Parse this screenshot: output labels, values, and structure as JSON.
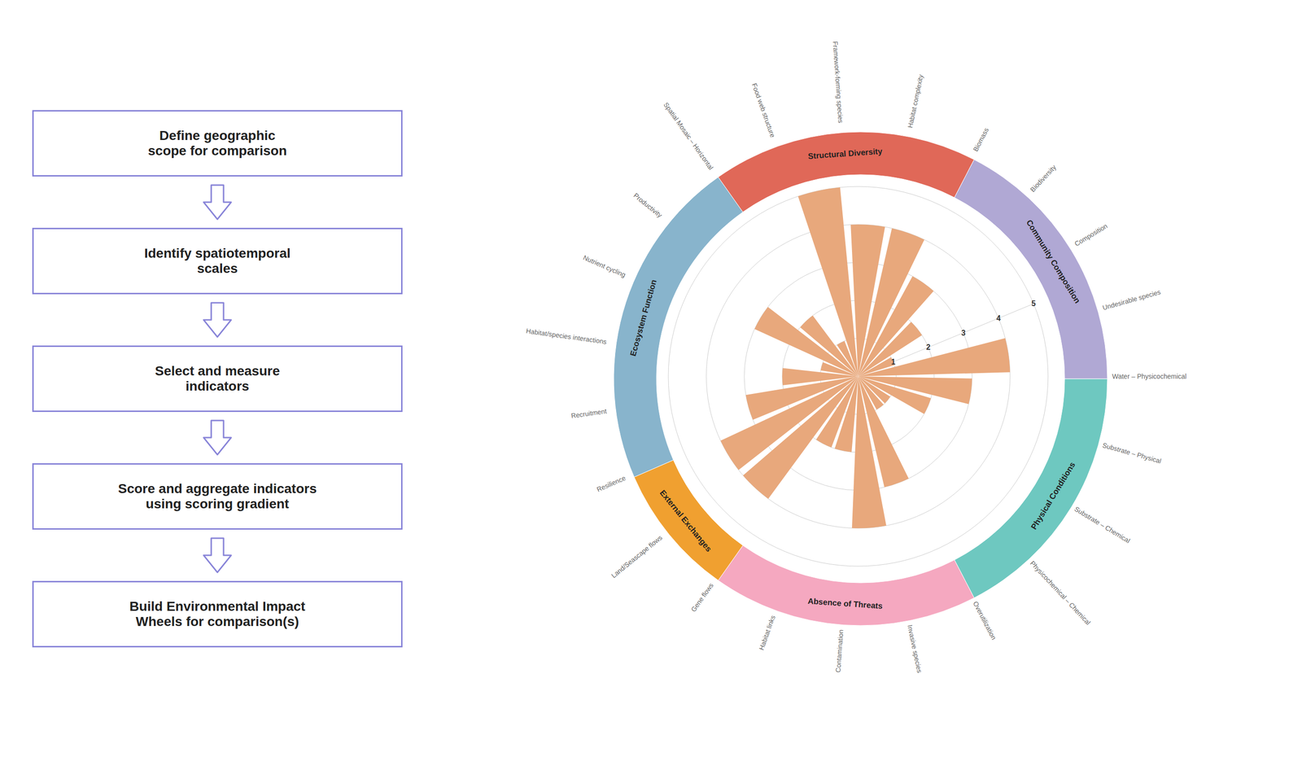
{
  "chart_data": {
    "type": "polar_bar",
    "categories": [
      "Water – Physicochemical",
      "Substrate – Physical",
      "Substrate – Chemical",
      "Physicochemical – Chemical",
      "Overutilization",
      "Invasive species",
      "Contamination",
      "Habitat links",
      "Gene flows",
      "Land/Seascape flows",
      "Resilience",
      "Recruitment",
      "Habitat/species interactions",
      "Nutrient cycling",
      "Productivity",
      "Spatial Mosaic – Horizontal",
      "Food web structure",
      "Framework-forming species",
      "Habitat complexity",
      "Biomass",
      "Biodiversity",
      "Composition",
      "Undesirable species"
    ],
    "values": [
      4,
      3,
      2,
      1,
      1,
      3,
      4,
      2,
      2,
      4,
      4,
      3,
      2,
      1,
      3,
      2,
      1,
      5,
      4,
      4,
      3,
      2,
      1
    ],
    "color": "#E8A87C",
    "groups": [
      {
        "name": "Physical Conditions",
        "color": "#6EC8C0",
        "categories": [
          "Water – Physicochemical",
          "Substrate – Physical",
          "Substrate – Chemical",
          "Physicochemical – Chemical"
        ]
      },
      {
        "name": "Absence of Threats",
        "color": "#F5A8C0",
        "categories": [
          "Overutilization",
          "Invasive species",
          "Contamination",
          "Habitat links"
        ]
      },
      {
        "name": "External Exchanges",
        "color": "#F0A030",
        "categories": [
          "Gene flows",
          "Land/Seascape flows"
        ]
      },
      {
        "name": "Ecosystem Function",
        "color": "#88B4CC",
        "categories": [
          "Resilience",
          "Recruitment",
          "Habitat/species interactions",
          "Nutrient cycling",
          "Productivity"
        ]
      },
      {
        "name": "Structural Diversity",
        "color": "#E06858",
        "categories": [
          "Spatial Mosaic – Horizontal",
          "Food web structure",
          "Framework-forming species",
          "Habitat complexity"
        ]
      },
      {
        "name": "Community Composition",
        "color": "#B0A8D4",
        "categories": [
          "Biomass",
          "Biodiversity",
          "Composition",
          "Undesirable species"
        ]
      }
    ],
    "ylim": [
      0,
      5
    ],
    "yticks": [
      1,
      2,
      3,
      4,
      5
    ],
    "grid": true,
    "annotations": [
      "Define geographic\nscope for comparison",
      "Identify spatiotemporal\nscales",
      "Select and measure\nindicators",
      "Score and aggregate indicators\nusing scoring gradient",
      "Build Environmental Impact\nWheels for comparison(s)"
    ]
  }
}
